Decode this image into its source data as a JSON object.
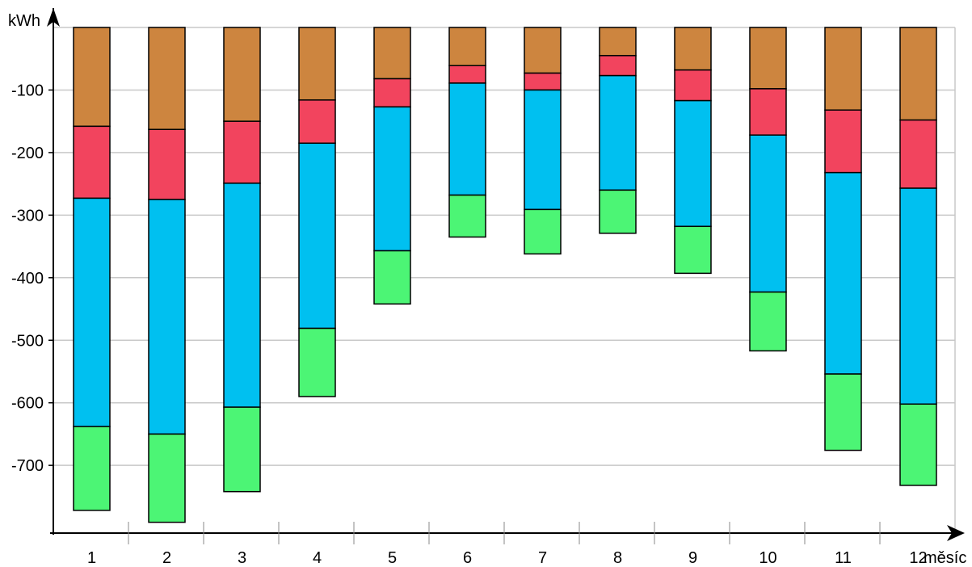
{
  "chart_data": {
    "type": "bar",
    "stacked": true,
    "ylabel": "kWh",
    "xlabel": "měsíc",
    "categories": [
      "1",
      "2",
      "3",
      "4",
      "5",
      "6",
      "7",
      "8",
      "9",
      "10",
      "11",
      "12"
    ],
    "yticks": [
      "-100",
      "-200",
      "-300",
      "-400",
      "-500",
      "-600",
      "-700"
    ],
    "ylim": [
      -800,
      0
    ],
    "grid": true,
    "series": [
      {
        "color": "#CD853F",
        "values": [
          -158,
          -163,
          -150,
          -116,
          -82,
          -61,
          -73,
          -45,
          -68,
          -98,
          -132,
          -148
        ]
      },
      {
        "color": "#F2445E",
        "values": [
          -115,
          -112,
          -99,
          -69,
          -45,
          -28,
          -27,
          -32,
          -49,
          -74,
          -100,
          -109
        ]
      },
      {
        "color": "#00C0F0",
        "values": [
          -365,
          -375,
          -358,
          -296,
          -230,
          -179,
          -191,
          -183,
          -201,
          -251,
          -322,
          -345
        ]
      },
      {
        "color": "#4CF575",
        "values": [
          -134,
          -141,
          -135,
          -109,
          -85,
          -67,
          -71,
          -69,
          -75,
          -94,
          -122,
          -130
        ]
      }
    ]
  }
}
